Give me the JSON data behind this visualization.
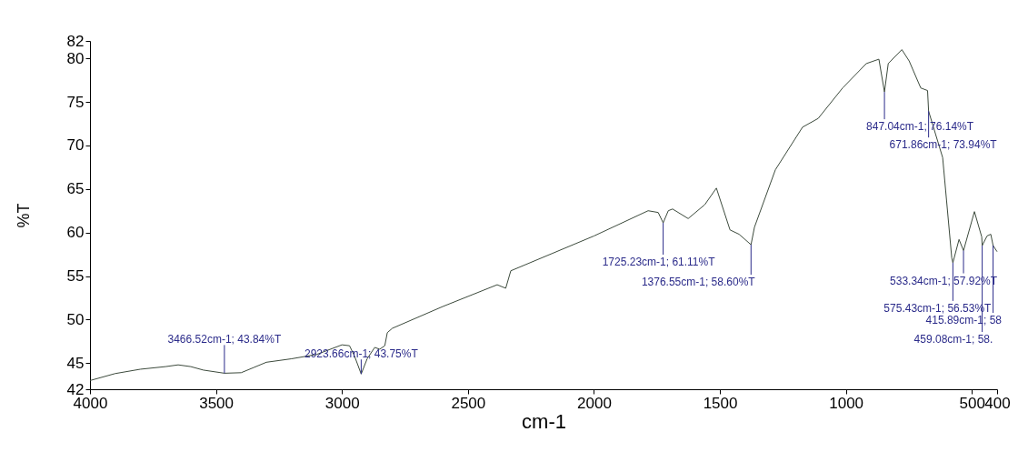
{
  "chart_data": {
    "type": "line",
    "xlabel": "cm-1",
    "ylabel": "%T",
    "xlim": [
      4000,
      400
    ],
    "xticks": [
      4000,
      3500,
      3000,
      2500,
      2000,
      1500,
      1000,
      500,
      400
    ],
    "ylim": [
      42,
      82
    ],
    "yticks": [
      42,
      45,
      50,
      55,
      60,
      65,
      70,
      75,
      80,
      82
    ],
    "grid": false,
    "marker": "none",
    "line_style": "solid",
    "series": [
      {
        "color": "#3c4a3c",
        "x": [
          4000,
          3900,
          3800,
          3700,
          3650,
          3600,
          3550,
          3466.52,
          3400,
          3350,
          3300,
          3200,
          3100,
          3000,
          2970,
          2950,
          2923.66,
          2900,
          2870,
          2850,
          2830,
          2820,
          2800,
          2600,
          2384,
          2350,
          2330,
          2000,
          1785,
          1745,
          1725.23,
          1705,
          1688,
          1626,
          1560,
          1514,
          1460,
          1424,
          1376.55,
          1363,
          1280,
          1172,
          1110,
          1013,
          919,
          869,
          847.04,
          832,
          778,
          749,
          703,
          676,
          671.86,
          616,
          580,
          575.43,
          551,
          533.34,
          490,
          461,
          459.08,
          440,
          425,
          415.89,
          400
        ],
        "values": [
          43.0,
          43.8,
          44.3,
          44.6,
          44.8,
          44.6,
          44.2,
          43.84,
          43.9,
          44.5,
          45.1,
          45.5,
          46.0,
          47.1,
          47.0,
          45.8,
          43.75,
          45.5,
          46.8,
          46.6,
          47.0,
          48.5,
          49.0,
          51.5,
          54.0,
          53.6,
          55.6,
          59.6,
          62.5,
          62.3,
          61.11,
          62.5,
          62.7,
          61.6,
          63.2,
          65.1,
          60.3,
          59.8,
          58.6,
          60.6,
          67.2,
          72.1,
          73.1,
          76.6,
          79.4,
          79.9,
          76.14,
          79.4,
          81.0,
          79.7,
          76.6,
          76.3,
          73.94,
          68.6,
          57.1,
          56.53,
          59.2,
          57.92,
          62.4,
          59.5,
          58.5,
          59.6,
          59.8,
          58.5,
          57.8
        ]
      }
    ],
    "annotations": [
      {
        "text": "3466.52cm-1; 43.84%T",
        "x": 3466.52,
        "y": 43.84
      },
      {
        "text": "2923.66cm-1; 43.75%T",
        "x": 2923.66,
        "y": 43.75
      },
      {
        "text": "1725.23cm-1; 61.11%T",
        "x": 1725.23,
        "y": 61.11
      },
      {
        "text": "1376.55cm-1; 58.60%T",
        "x": 1376.55,
        "y": 58.6
      },
      {
        "text": "847.04cm-1; 76.14%T",
        "x": 847.04,
        "y": 76.14
      },
      {
        "text": "671.86cm-1; 73.94%T",
        "x": 671.86,
        "y": 73.94
      },
      {
        "text": "533.34cm-1; 57.92%T",
        "x": 533.34,
        "y": 57.92
      },
      {
        "text": "575.43cm-1; 56.53%T",
        "x": 575.43,
        "y": 56.53
      },
      {
        "text": "415.89cm-1; 58",
        "x": 415.89,
        "y": 58.5
      },
      {
        "text": "459.08cm-1; 58.",
        "x": 459.08,
        "y": 58.5
      }
    ]
  }
}
